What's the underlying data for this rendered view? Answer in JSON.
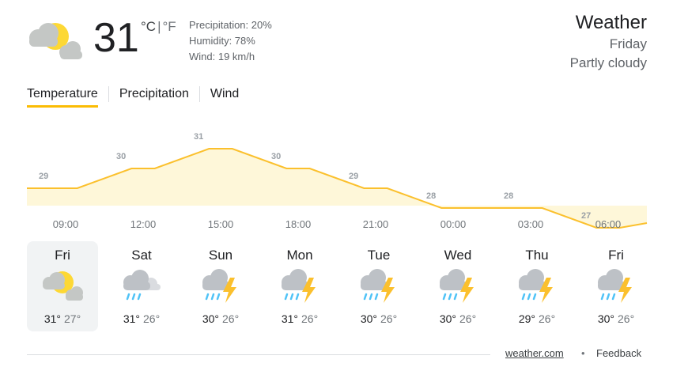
{
  "current": {
    "temperature": "31",
    "unit_c": "°C",
    "unit_sep": "|",
    "unit_f": "°F",
    "icon": "partly-cloudy-icon",
    "precipitation": "Precipitation: 20%",
    "humidity": "Humidity: 78%",
    "wind": "Wind: 19 km/h"
  },
  "header": {
    "title": "Weather",
    "day": "Friday",
    "condition": "Partly cloudy"
  },
  "tabs": [
    {
      "label": "Temperature",
      "active": true
    },
    {
      "label": "Precipitation",
      "active": false
    },
    {
      "label": "Wind",
      "active": false
    }
  ],
  "chart_data": {
    "type": "area",
    "x": [
      "09:00",
      "12:00",
      "15:00",
      "18:00",
      "21:00",
      "00:00",
      "03:00",
      "06:00"
    ],
    "values": [
      29,
      30,
      31,
      30,
      29,
      28,
      28,
      27
    ],
    "ylabel": "",
    "xlabel": "",
    "grid": false,
    "line_color": "#fbc02d",
    "fill_color": "#fef7d9"
  },
  "forecast": [
    {
      "day": "Fri",
      "icon": "partly-cloudy-icon",
      "high": "31°",
      "low": "27°",
      "selected": true
    },
    {
      "day": "Sat",
      "icon": "cloudy-rain-icon",
      "high": "31°",
      "low": "26°",
      "selected": false
    },
    {
      "day": "Sun",
      "icon": "thunderstorm-icon",
      "high": "30°",
      "low": "26°",
      "selected": false
    },
    {
      "day": "Mon",
      "icon": "thunderstorm-icon",
      "high": "31°",
      "low": "26°",
      "selected": false
    },
    {
      "day": "Tue",
      "icon": "thunderstorm-icon",
      "high": "30°",
      "low": "26°",
      "selected": false
    },
    {
      "day": "Wed",
      "icon": "thunderstorm-icon",
      "high": "30°",
      "low": "26°",
      "selected": false
    },
    {
      "day": "Thu",
      "icon": "thunderstorm-icon",
      "high": "29°",
      "low": "26°",
      "selected": false
    },
    {
      "day": "Fri",
      "icon": "thunderstorm-icon",
      "high": "30°",
      "low": "26°",
      "selected": false
    }
  ],
  "footer": {
    "source": "weather.com",
    "separator": "•",
    "feedback": "Feedback"
  },
  "colors": {
    "accent": "#fbbc04",
    "sun": "#fdd835",
    "cloud": "#c4c7c5",
    "rain": "#4fc3f7",
    "bolt": "#fbc02d"
  }
}
